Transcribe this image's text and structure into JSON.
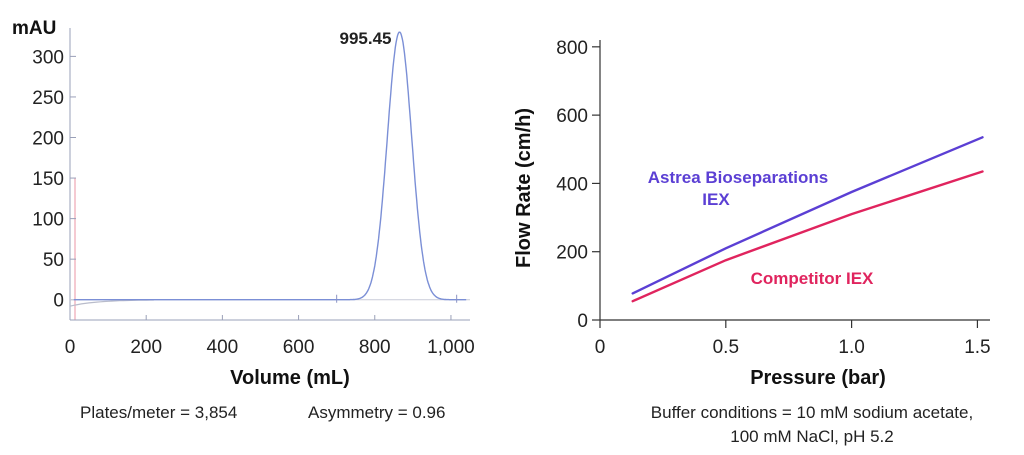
{
  "chart_data": [
    {
      "type": "line",
      "title": "",
      "ylabel": "mAU",
      "xlabel": "Volume (mL)",
      "xlim": [
        0,
        1050
      ],
      "ylim": [
        -25,
        335
      ],
      "x_ticks": [
        0,
        200,
        400,
        600,
        800,
        1000
      ],
      "x_tick_labels": [
        "0",
        "200",
        "400",
        "600",
        "800",
        "1,000"
      ],
      "y_ticks": [
        0,
        50,
        100,
        150,
        200,
        250,
        300
      ],
      "y_tick_labels": [
        "0",
        "50",
        "100",
        "150",
        "200",
        "250",
        "300"
      ],
      "peak": {
        "x": 865,
        "y": 330,
        "label": "995.45",
        "sigma": 32
      },
      "baseline": 0,
      "caption_plates": "Plates/meter = 3,854",
      "caption_asymmetry": "Asymmetry = 0.96",
      "line_color": "#7b8fd6"
    },
    {
      "type": "line",
      "title": "",
      "xlabel": "Pressure (bar)",
      "ylabel": "Flow Rate (cm/h)",
      "xlim": [
        0,
        1.55
      ],
      "ylim": [
        0,
        820
      ],
      "x_ticks": [
        0,
        0.5,
        1.0,
        1.5
      ],
      "x_tick_labels": [
        "0",
        "0.5",
        "1.0",
        "1.5"
      ],
      "y_ticks": [
        0,
        200,
        400,
        600,
        800
      ],
      "y_tick_labels": [
        "0",
        "200",
        "400",
        "600",
        "800"
      ],
      "series": [
        {
          "name": "Astrea Bioseparations IEX",
          "label_line1": "Astrea Bioseparations",
          "label_line2": "IEX",
          "color": "#5b3fd4",
          "x": [
            0.13,
            0.5,
            1.0,
            1.52
          ],
          "y": [
            78,
            210,
            375,
            535
          ]
        },
        {
          "name": "Competitor IEX",
          "label_line1": "Competitor IEX",
          "color": "#e0245e",
          "x": [
            0.13,
            0.5,
            1.0,
            1.52
          ],
          "y": [
            55,
            175,
            310,
            435
          ]
        }
      ],
      "caption_line1": "Buffer conditions = 10 mM sodium acetate,",
      "caption_line2": "100 mM NaCl, pH 5.2"
    }
  ]
}
